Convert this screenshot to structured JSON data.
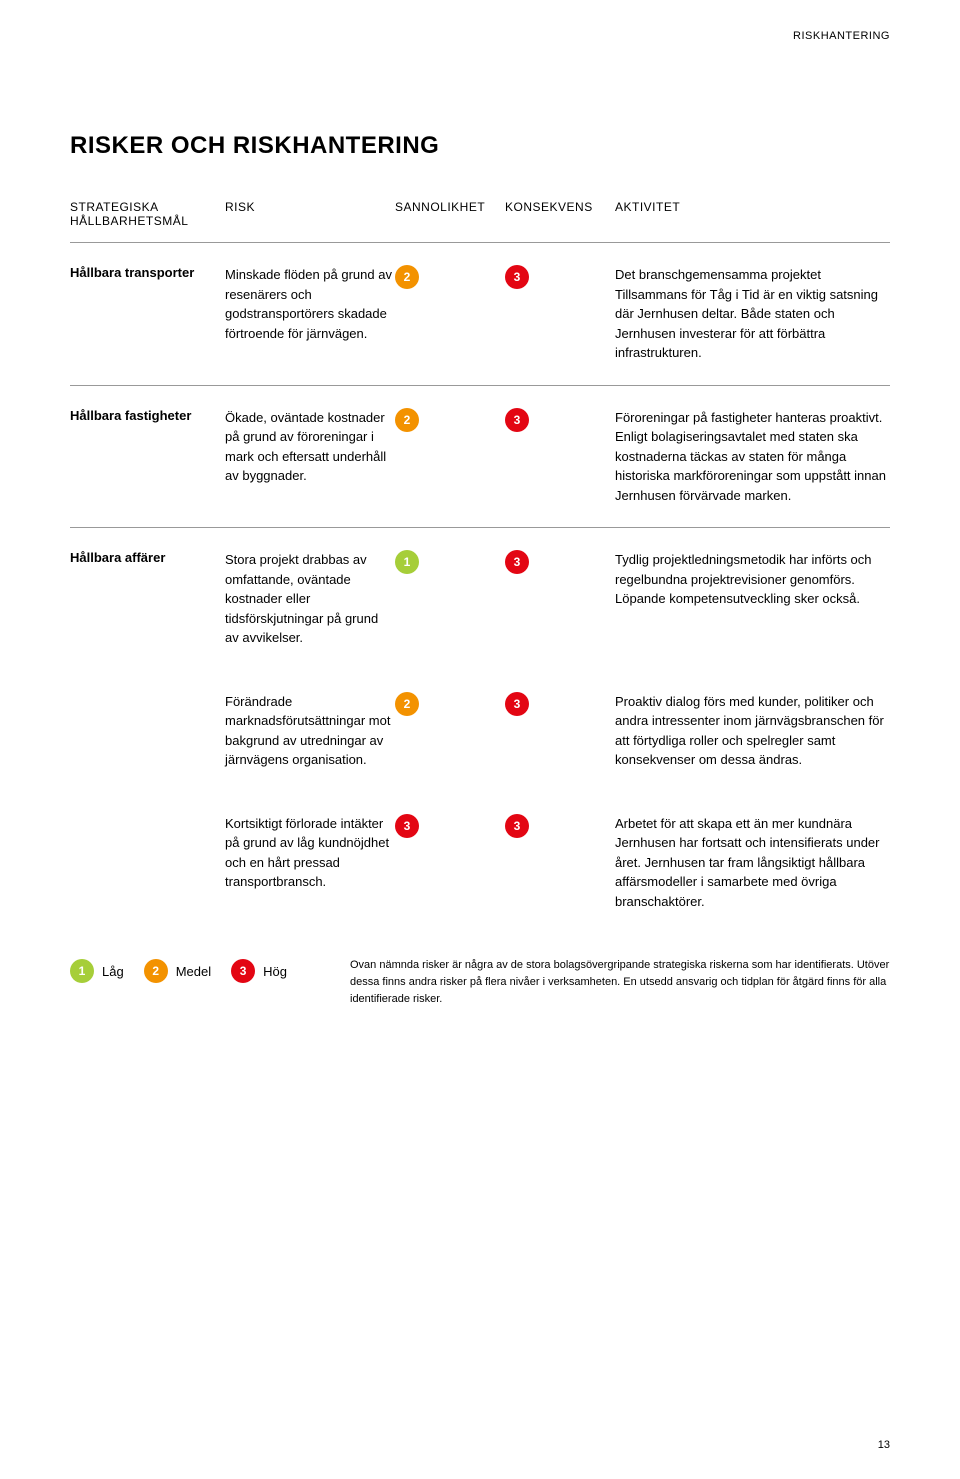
{
  "header": {
    "section_label": "RISKHANTERING"
  },
  "title": "RISKER OCH RISKHANTERING",
  "columns": {
    "goal": "STRATEGISKA HÅLLBARHETSMÅL",
    "risk": "RISK",
    "probability": "SANNOLIKHET",
    "consequence": "KONSEKVENS",
    "activity": "AKTIVITET"
  },
  "scale_colors": {
    "1": "#a6ce39",
    "2": "#f39200",
    "3": "#e30613"
  },
  "groups": [
    {
      "goal": "Hållbara transporter",
      "rows": [
        {
          "risk": "Minskade flöden på grund av resenärers och godstransportörers skadade förtroende för järnvägen.",
          "probability": 2,
          "consequence": 3,
          "activity": "Det branschgemensamma projektet Tillsammans för Tåg i Tid är en viktig satsning där Jernhusen deltar. Både staten och Jernhusen investerar för att förbättra infrastrukturen."
        }
      ]
    },
    {
      "goal": "Hållbara fastigheter",
      "rows": [
        {
          "risk": "Ökade, oväntade kostnader på grund av föroreningar i mark och eftersatt underhåll av byggnader.",
          "probability": 2,
          "consequence": 3,
          "activity": "Föroreningar på fastigheter hanteras proaktivt. Enligt bolagiseringsavtalet med staten ska kostnaderna täckas av staten för många historiska markföroreningar som uppstått innan Jernhusen förvärvade marken."
        }
      ]
    },
    {
      "goal": "Hållbara affärer",
      "rows": [
        {
          "risk": "Stora projekt drabbas av omfattande, oväntade kostnader eller tidsförskjutningar på grund av avvikelser.",
          "probability": 1,
          "consequence": 3,
          "activity": "Tydlig projektledningsmetodik har införts och regelbundna projektrevisioner genomförs. Löpande kompetensutveckling sker också."
        },
        {
          "risk": "Förändrade marknadsförutsättningar mot bakgrund av utredningar av järnvägens organisation.",
          "probability": 2,
          "consequence": 3,
          "activity": "Proaktiv dialog förs med kunder, politiker och andra intressenter inom järnvägsbranschen för att förtydliga roller och spelregler samt konsekvenser om dessa ändras."
        },
        {
          "risk": "Kortsiktigt förlorade intäkter på grund av låg kundnöjdhet och en hårt pressad transportbransch.",
          "probability": 3,
          "consequence": 3,
          "activity": "Arbetet för att skapa ett än mer kundnära Jernhusen har fortsatt och intensifierats under året. Jernhusen tar fram långsiktigt hållbara affärsmodeller i samarbete med övriga branschaktörer."
        }
      ]
    }
  ],
  "legend": {
    "levels": [
      {
        "value": 1,
        "label": "Låg"
      },
      {
        "value": 2,
        "label": "Medel"
      },
      {
        "value": 3,
        "label": "Hög"
      }
    ],
    "note": "Ovan nämnda risker är några av de stora bolagsövergripande strategiska riskerna som har identifierats. Utöver dessa finns andra risker på flera nivåer i verksamheten. En utsedd ansvarig och tidplan för åtgärd finns för alla identifierade risker."
  },
  "page_number": "13"
}
